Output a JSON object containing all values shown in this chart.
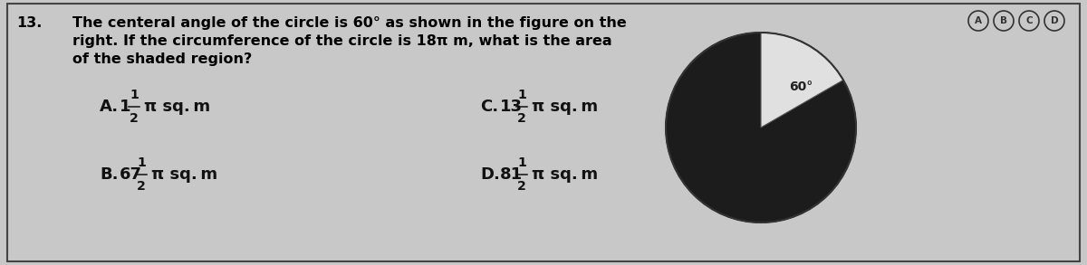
{
  "question_num": "13.",
  "question_text_line1": "The centeral angle of the circle is 60° as shown in the figure on the",
  "question_text_line2": "right. If the circumference of the circle is 18π m, what is the area",
  "question_text_line3": "of the shaded region?",
  "shaded_color": "#1c1c1c",
  "unshaded_color": "#e0e0e0",
  "angle_label": "60°",
  "background_color": "#c8c8c8",
  "box_bg": "#c8c8c8",
  "text_color": "#000000",
  "border_color": "#444444",
  "font_size_question": 11.5,
  "abcd_labels": [
    "A",
    "B",
    "C",
    "D"
  ],
  "choice_A_whole": "1",
  "choice_B_whole": "67",
  "choice_C_whole": "13",
  "choice_D_whole": "81",
  "frac_num": "1",
  "frac_den": "2",
  "pi_unit": "π sq. m"
}
